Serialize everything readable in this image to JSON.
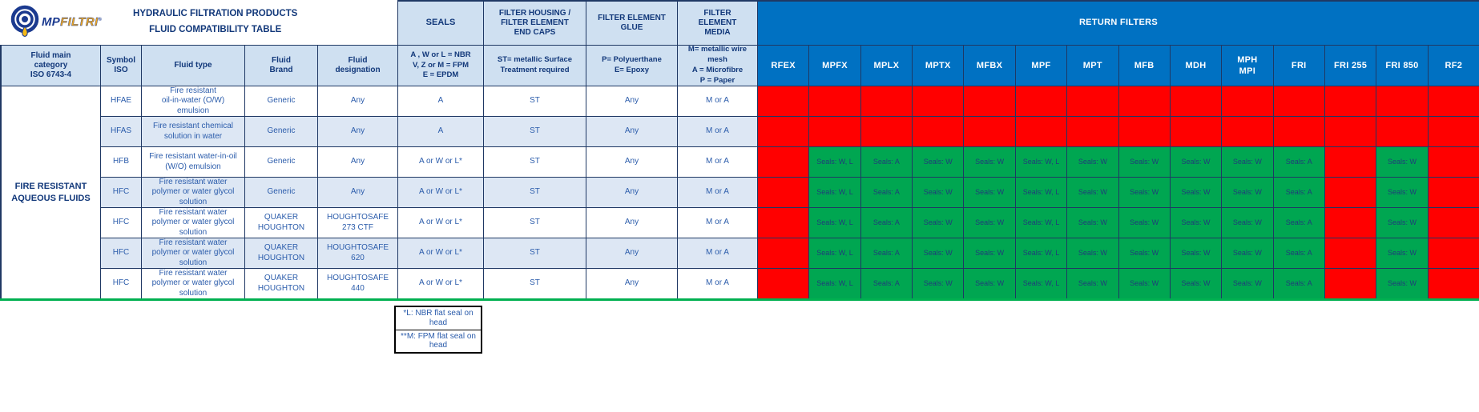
{
  "logo": {
    "mp": "MP",
    "filtri": "FILTRI",
    "reg": "®"
  },
  "title": {
    "line1": "HYDRAULIC FILTRATION PRODUCTS",
    "line2": "FLUID COMPATIBILITY TABLE"
  },
  "group_headers": {
    "seals": "SEALS",
    "end_caps": [
      "FILTER HOUSING /",
      "FILTER ELEMENT",
      "END CAPS"
    ],
    "glue": [
      "FILTER ELEMENT",
      "GLUE"
    ],
    "media": [
      "FILTER",
      "ELEMENT",
      "MEDIA"
    ],
    "return_filters": "RETURN FILTERS"
  },
  "column_headers": {
    "category": [
      "Fluid main",
      "category",
      "ISO 6743-4"
    ],
    "symbol": [
      "Symbol",
      "ISO"
    ],
    "fluid_type": "Fluid type",
    "brand": [
      "Fluid",
      "Brand"
    ],
    "designation": [
      "Fluid",
      "designation"
    ],
    "seals_key": [
      "A , W or L = NBR",
      "V, Z or M = FPM",
      "E = EPDM"
    ],
    "end_caps_key": [
      "ST= metallic Surface",
      "Treatment required"
    ],
    "glue_key": [
      "P= Polyuerthane",
      "E= Epoxy"
    ],
    "media_key": [
      "M= metallic wire",
      "mesh",
      "A = Microfibre",
      "P = Paper"
    ]
  },
  "filters": [
    "RFEX",
    "MPFX",
    "MPLX",
    "MPTX",
    "MFBX",
    "MPF",
    "MPT",
    "MFB",
    "MDH",
    "MPH\nMPI",
    "FRI",
    "FRI 255",
    "FRI 850",
    "RF2"
  ],
  "category_group": [
    "FIRE RESISTANT",
    "AQUEOUS FLUIDS"
  ],
  "rows": [
    {
      "symbol": "HFAE",
      "fluid_type": [
        "Fire resistant",
        "oil-in-water (O/W)",
        "emulsion"
      ],
      "brand": "Generic",
      "designation": "Any",
      "seals": "A",
      "end_caps": "ST",
      "glue": "Any",
      "media": "M or A",
      "filters": [
        "",
        "",
        "",
        "",
        "",
        "",
        "",
        "",
        "",
        "",
        "",
        "",
        "",
        ""
      ]
    },
    {
      "symbol": "HFAS",
      "fluid_type": [
        "Fire resistant chemical",
        "solution in water"
      ],
      "brand": "Generic",
      "designation": "Any",
      "seals": "A",
      "end_caps": "ST",
      "glue": "Any",
      "media": "M or A",
      "filters": [
        "",
        "",
        "",
        "",
        "",
        "",
        "",
        "",
        "",
        "",
        "",
        "",
        "",
        ""
      ]
    },
    {
      "symbol": "HFB",
      "fluid_type": [
        "Fire resistant water-in-oil",
        "(W/O) emulsion"
      ],
      "brand": "Generic",
      "designation": "Any",
      "seals": "A or W or L*",
      "end_caps": "ST",
      "glue": "Any",
      "media": "M or A",
      "filters": [
        "",
        "Seals: W, L",
        "Seals: A",
        "Seals: W",
        "Seals: W",
        "Seals: W, L",
        "Seals: W",
        "Seals: W",
        "Seals: W",
        "Seals: W",
        "Seals: A",
        "",
        "Seals: W",
        ""
      ]
    },
    {
      "symbol": "HFC",
      "fluid_type": [
        "Fire resistant water",
        "polymer or water glycol",
        "solution"
      ],
      "brand": "Generic",
      "designation": "Any",
      "seals": "A or W or L*",
      "end_caps": "ST",
      "glue": "Any",
      "media": "M or A",
      "filters": [
        "",
        "Seals: W, L",
        "Seals: A",
        "Seals: W",
        "Seals: W",
        "Seals: W, L",
        "Seals: W",
        "Seals: W",
        "Seals: W",
        "Seals: W",
        "Seals: A",
        "",
        "Seals: W",
        ""
      ]
    },
    {
      "symbol": "HFC",
      "fluid_type": [
        "Fire resistant water",
        "polymer or water glycol",
        "solution"
      ],
      "brand": [
        "QUAKER",
        "HOUGHTON"
      ],
      "designation": [
        "HOUGHTOSAFE",
        "273 CTF"
      ],
      "seals": "A or W or L*",
      "end_caps": "ST",
      "glue": "Any",
      "media": "M or A",
      "filters": [
        "",
        "Seals: W, L",
        "Seals: A",
        "Seals: W",
        "Seals: W",
        "Seals: W, L",
        "Seals: W",
        "Seals: W",
        "Seals: W",
        "Seals: W",
        "Seals: A",
        "",
        "Seals: W",
        ""
      ]
    },
    {
      "symbol": "HFC",
      "fluid_type": [
        "Fire resistant water",
        "polymer or water glycol",
        "solution"
      ],
      "brand": [
        "QUAKER",
        "HOUGHTON"
      ],
      "designation": [
        "HOUGHTOSAFE",
        "620"
      ],
      "seals": "A or W or L*",
      "end_caps": "ST",
      "glue": "Any",
      "media": "M or A",
      "filters": [
        "",
        "Seals: W, L",
        "Seals: A",
        "Seals: W",
        "Seals: W",
        "Seals: W, L",
        "Seals: W",
        "Seals: W",
        "Seals: W",
        "Seals: W",
        "Seals: A",
        "",
        "Seals: W",
        ""
      ]
    },
    {
      "symbol": "HFC",
      "fluid_type": [
        "Fire resistant water",
        "polymer or water glycol",
        "solution"
      ],
      "brand": [
        "QUAKER",
        "HOUGHTON"
      ],
      "designation": [
        "HOUGHTOSAFE",
        "440"
      ],
      "seals": "A or W or L*",
      "end_caps": "ST",
      "glue": "Any",
      "media": "M or A",
      "filters": [
        "",
        "Seals: W, L",
        "Seals: A",
        "Seals: W",
        "Seals: W",
        "Seals: W, L",
        "Seals: W",
        "Seals: W",
        "Seals: W",
        "Seals: W",
        "Seals: A",
        "",
        "Seals: W",
        ""
      ]
    }
  ],
  "footnotes": [
    "*L: NBR flat seal on head",
    "**M: FPM flat seal on head"
  ],
  "colors": {
    "header_blue": "#0071c2",
    "incompatible_red": "#ff0000",
    "compatible_green": "#00a651",
    "grid_navy": "#1f3864",
    "bottom_line_green": "#00b050",
    "header_light_blue": "#cfe0f1",
    "row_alt_blue": "#dde7f4",
    "brand_gold": "#f0a71e"
  }
}
